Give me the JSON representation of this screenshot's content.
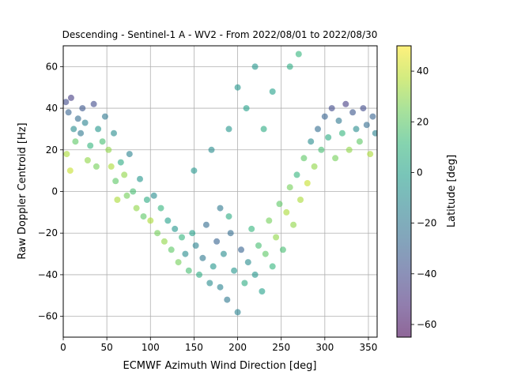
{
  "chart_data": {
    "type": "scatter",
    "title": "Descending - Sentinel-1 A - WV2 - From 2022/08/01 to 2022/08/30",
    "xlabel": "ECMWF Azimuth Wind Direction [deg]",
    "ylabel": "Raw Doppler Centroid [Hz]",
    "xlim": [
      0,
      360
    ],
    "ylim": [
      -70,
      70
    ],
    "xticks": [
      0,
      50,
      100,
      150,
      200,
      250,
      300,
      350
    ],
    "yticks": [
      -60,
      -40,
      -20,
      0,
      20,
      40,
      60
    ],
    "grid": true,
    "colorbar": {
      "label": "Latitude [deg]",
      "range": [
        -65,
        50
      ],
      "ticks": [
        -60,
        -40,
        -20,
        0,
        20,
        40
      ],
      "colormap": "viridis",
      "alpha": 0.6
    },
    "colormap_stops": [
      "#440154",
      "#482878",
      "#3e4989",
      "#31688e",
      "#26828e",
      "#1f9e89",
      "#35b779",
      "#6ece58",
      "#b5de2b",
      "#fde725"
    ],
    "series": [
      {
        "points": [
          [
            3,
            43,
            -40
          ],
          [
            6,
            38,
            -30
          ],
          [
            9,
            45,
            -45
          ],
          [
            12,
            30,
            -10
          ],
          [
            14,
            24,
            20
          ],
          [
            17,
            35,
            -25
          ],
          [
            4,
            18,
            35
          ],
          [
            8,
            10,
            40
          ],
          [
            20,
            28,
            -20
          ],
          [
            22,
            40,
            -35
          ],
          [
            25,
            33,
            -15
          ],
          [
            28,
            15,
            30
          ],
          [
            31,
            22,
            10
          ],
          [
            35,
            42,
            -40
          ],
          [
            38,
            12,
            25
          ],
          [
            40,
            30,
            -5
          ],
          [
            45,
            24,
            15
          ],
          [
            48,
            36,
            -20
          ],
          [
            52,
            20,
            30
          ],
          [
            55,
            12,
            35
          ],
          [
            58,
            28,
            -10
          ],
          [
            60,
            5,
            20
          ],
          [
            62,
            -4,
            35
          ],
          [
            66,
            14,
            5
          ],
          [
            70,
            8,
            30
          ],
          [
            73,
            -2,
            25
          ],
          [
            76,
            18,
            -15
          ],
          [
            80,
            0,
            15
          ],
          [
            84,
            -8,
            30
          ],
          [
            88,
            6,
            -5
          ],
          [
            92,
            -12,
            20
          ],
          [
            96,
            -4,
            5
          ],
          [
            100,
            -14,
            35
          ],
          [
            104,
            -2,
            -10
          ],
          [
            108,
            -20,
            25
          ],
          [
            112,
            -8,
            10
          ],
          [
            116,
            -24,
            30
          ],
          [
            120,
            -14,
            0
          ],
          [
            124,
            -28,
            20
          ],
          [
            128,
            -18,
            -5
          ],
          [
            132,
            -34,
            25
          ],
          [
            136,
            -22,
            10
          ],
          [
            140,
            -30,
            -10
          ],
          [
            144,
            -38,
            15
          ],
          [
            148,
            -20,
            0
          ],
          [
            152,
            -26,
            -15
          ],
          [
            156,
            -40,
            5
          ],
          [
            160,
            -32,
            -20
          ],
          [
            164,
            -16,
            -25
          ],
          [
            168,
            -44,
            -10
          ],
          [
            172,
            -36,
            -5
          ],
          [
            176,
            -24,
            -30
          ],
          [
            180,
            -46,
            -15
          ],
          [
            184,
            -30,
            -10
          ],
          [
            188,
            -52,
            -20
          ],
          [
            192,
            -20,
            -25
          ],
          [
            196,
            -38,
            -5
          ],
          [
            200,
            -58,
            -15
          ],
          [
            204,
            -28,
            -30
          ],
          [
            208,
            -44,
            5
          ],
          [
            212,
            -34,
            -10
          ],
          [
            216,
            -18,
            10
          ],
          [
            220,
            -40,
            -5
          ],
          [
            224,
            -26,
            15
          ],
          [
            228,
            -48,
            0
          ],
          [
            232,
            -30,
            20
          ],
          [
            236,
            -14,
            25
          ],
          [
            240,
            -36,
            10
          ],
          [
            244,
            -22,
            30
          ],
          [
            248,
            -6,
            20
          ],
          [
            252,
            -28,
            15
          ],
          [
            256,
            -10,
            35
          ],
          [
            260,
            2,
            25
          ],
          [
            264,
            -16,
            30
          ],
          [
            268,
            8,
            10
          ],
          [
            272,
            -4,
            35
          ],
          [
            276,
            16,
            20
          ],
          [
            280,
            4,
            40
          ],
          [
            284,
            24,
            -10
          ],
          [
            288,
            12,
            30
          ],
          [
            292,
            30,
            -25
          ],
          [
            296,
            20,
            15
          ],
          [
            300,
            36,
            -30
          ],
          [
            304,
            26,
            5
          ],
          [
            308,
            40,
            -40
          ],
          [
            312,
            16,
            25
          ],
          [
            316,
            34,
            -20
          ],
          [
            320,
            28,
            10
          ],
          [
            324,
            42,
            -45
          ],
          [
            328,
            20,
            30
          ],
          [
            332,
            38,
            -35
          ],
          [
            336,
            30,
            -10
          ],
          [
            340,
            24,
            20
          ],
          [
            344,
            40,
            -40
          ],
          [
            348,
            32,
            -25
          ],
          [
            352,
            18,
            35
          ],
          [
            355,
            36,
            -30
          ],
          [
            358,
            28,
            -15
          ],
          [
            150,
            10,
            -5
          ],
          [
            170,
            20,
            -10
          ],
          [
            190,
            30,
            -5
          ],
          [
            200,
            50,
            -5
          ],
          [
            210,
            40,
            0
          ],
          [
            220,
            60,
            -5
          ],
          [
            230,
            30,
            5
          ],
          [
            240,
            48,
            0
          ],
          [
            260,
            60,
            5
          ],
          [
            270,
            66,
            10
          ],
          [
            180,
            -8,
            -20
          ],
          [
            190,
            -12,
            5
          ]
        ]
      }
    ]
  }
}
